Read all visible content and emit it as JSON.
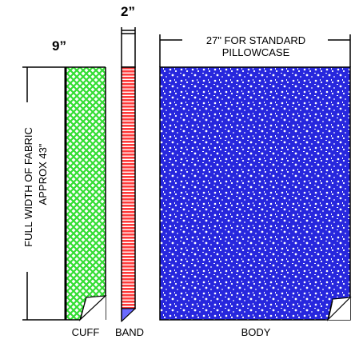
{
  "labels": {
    "band_width": "2”",
    "cuff_width": "9”",
    "body_width_line1": "27\" FOR STANDARD",
    "body_width_line2": "PILLOWCASE",
    "fabric_width_line1": "FULL WIDTH OF FABRIC",
    "fabric_width_line2": "APPROX 43\"",
    "cuff": "CUFF",
    "band": "BAND",
    "body": "BODY"
  },
  "colors": {
    "cuff_fill": "#33dd33",
    "band_fill": "#ff3b3b",
    "body_fill": "#2222dd",
    "outline": "#000000"
  }
}
